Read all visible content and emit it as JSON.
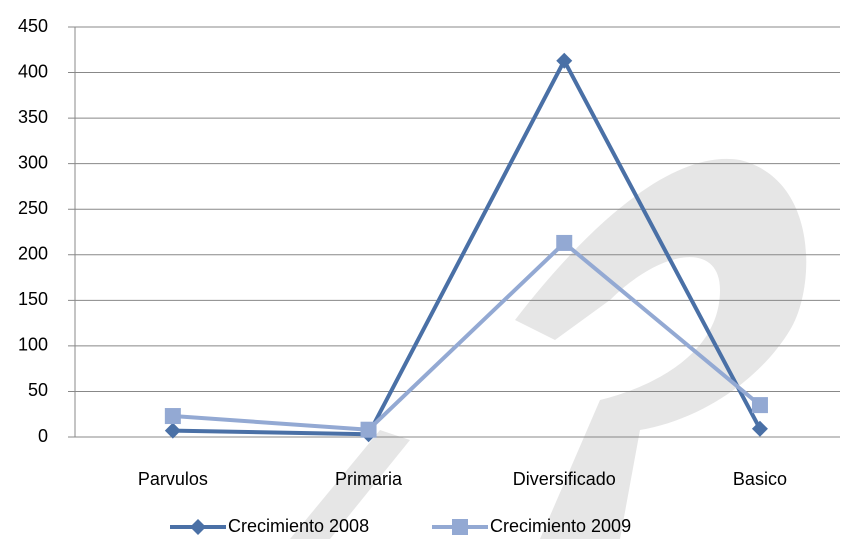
{
  "chart_data": {
    "type": "line",
    "categories": [
      "Parvulos",
      "Primaria",
      "Diversificado",
      "Basico"
    ],
    "series": [
      {
        "name": "Crecimiento 2008",
        "color": "#4a70a6",
        "marker": "diamond",
        "values": [
          7,
          3,
          413,
          9
        ]
      },
      {
        "name": "Crecimiento 2009",
        "color": "#93a9d3",
        "marker": "square",
        "values": [
          23,
          8,
          213,
          35
        ]
      }
    ],
    "ylim": [
      0,
      450
    ],
    "yticks": [
      0,
      50,
      100,
      150,
      200,
      250,
      300,
      350,
      400,
      450
    ],
    "grid": true,
    "legend": "bottom"
  }
}
